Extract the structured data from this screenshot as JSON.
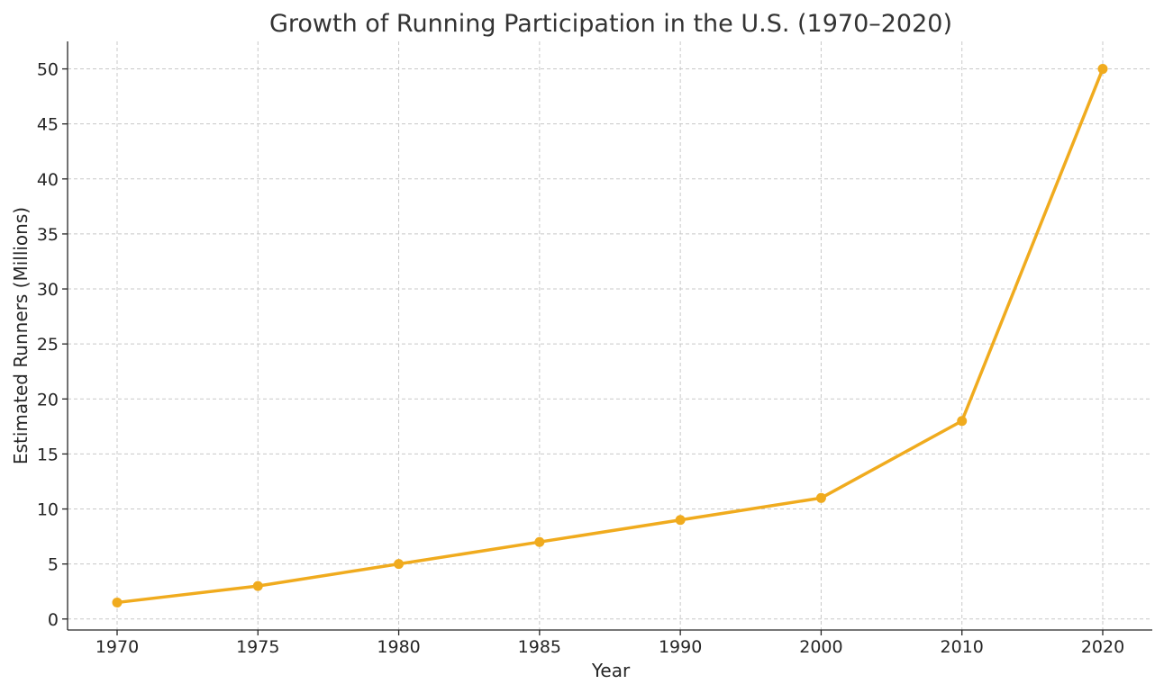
{
  "chart_data": {
    "type": "line",
    "title": "Growth of Running Participation in the U.S. (1970–2020)",
    "xlabel": "Year",
    "ylabel": "Estimated Runners (Millions)",
    "x": [
      1970,
      1975,
      1980,
      1985,
      1990,
      2000,
      2010,
      2020
    ],
    "x_tick_labels": [
      "1970",
      "1975",
      "1980",
      "1985",
      "1990",
      "2000",
      "2010",
      "2020"
    ],
    "x_axis_scale": "categorical-evenly-spaced-by-year-index",
    "y_ticks": [
      0,
      5,
      10,
      15,
      20,
      25,
      30,
      35,
      40,
      45,
      50
    ],
    "y_tick_labels": [
      "0",
      "5",
      "10",
      "15",
      "20",
      "25",
      "30",
      "35",
      "40",
      "45",
      "50"
    ],
    "ylim": [
      -1,
      52.5
    ],
    "series": [
      {
        "values": [
          1.5,
          3,
          5,
          7,
          9,
          11,
          18,
          50
        ],
        "color": "#f0ab1e",
        "marker": "circle"
      }
    ],
    "grid": true,
    "grid_style": "dashed",
    "legend": "none"
  }
}
